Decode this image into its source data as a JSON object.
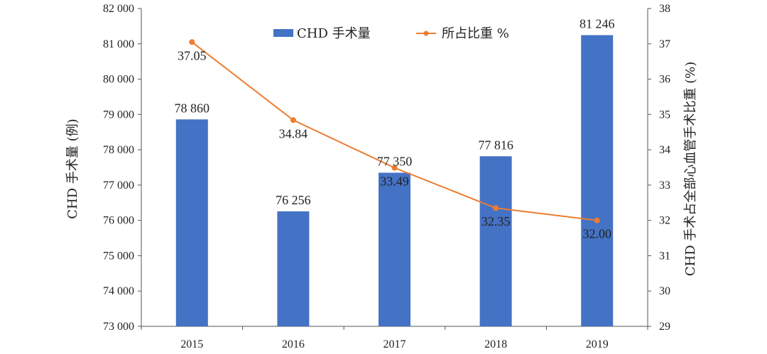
{
  "chart_data": {
    "type": "bar+line",
    "categories": [
      "2015",
      "2016",
      "2017",
      "2018",
      "2019"
    ],
    "series": [
      {
        "name": "CHD 手术量",
        "type": "bar",
        "axis": "left",
        "color": "#4472c4",
        "values": [
          78860,
          76256,
          77350,
          77816,
          81246
        ],
        "labels": [
          "78 860",
          "76 256",
          "77 350",
          "77 816",
          "81 246"
        ]
      },
      {
        "name": "所占比重 %",
        "type": "line",
        "axis": "right",
        "color": "#ed7d31",
        "values": [
          37.05,
          34.84,
          33.49,
          32.35,
          32.0
        ],
        "labels": [
          "37.05",
          "34.84",
          "33.49",
          "32.35",
          "32.00"
        ]
      }
    ],
    "y_left": {
      "label": "CHD 手术量 (例)",
      "ylim": [
        73000,
        82000
      ],
      "ticks": [
        73000,
        74000,
        75000,
        76000,
        77000,
        78000,
        79000,
        80000,
        81000,
        82000
      ],
      "tick_labels": [
        "73 000",
        "74 000",
        "75 000",
        "76 000",
        "77 000",
        "78 000",
        "79 000",
        "80 000",
        "81 000",
        "82 000"
      ]
    },
    "y_right": {
      "label": "CHD 手术占全部心血管手术比重 (%)",
      "ylim": [
        29,
        38
      ],
      "ticks": [
        29,
        30,
        31,
        32,
        33,
        34,
        35,
        36,
        37,
        38
      ],
      "tick_labels": [
        "29",
        "30",
        "31",
        "32",
        "33",
        "34",
        "35",
        "36",
        "37",
        "38"
      ]
    },
    "grid": false,
    "legend": "top-center"
  }
}
